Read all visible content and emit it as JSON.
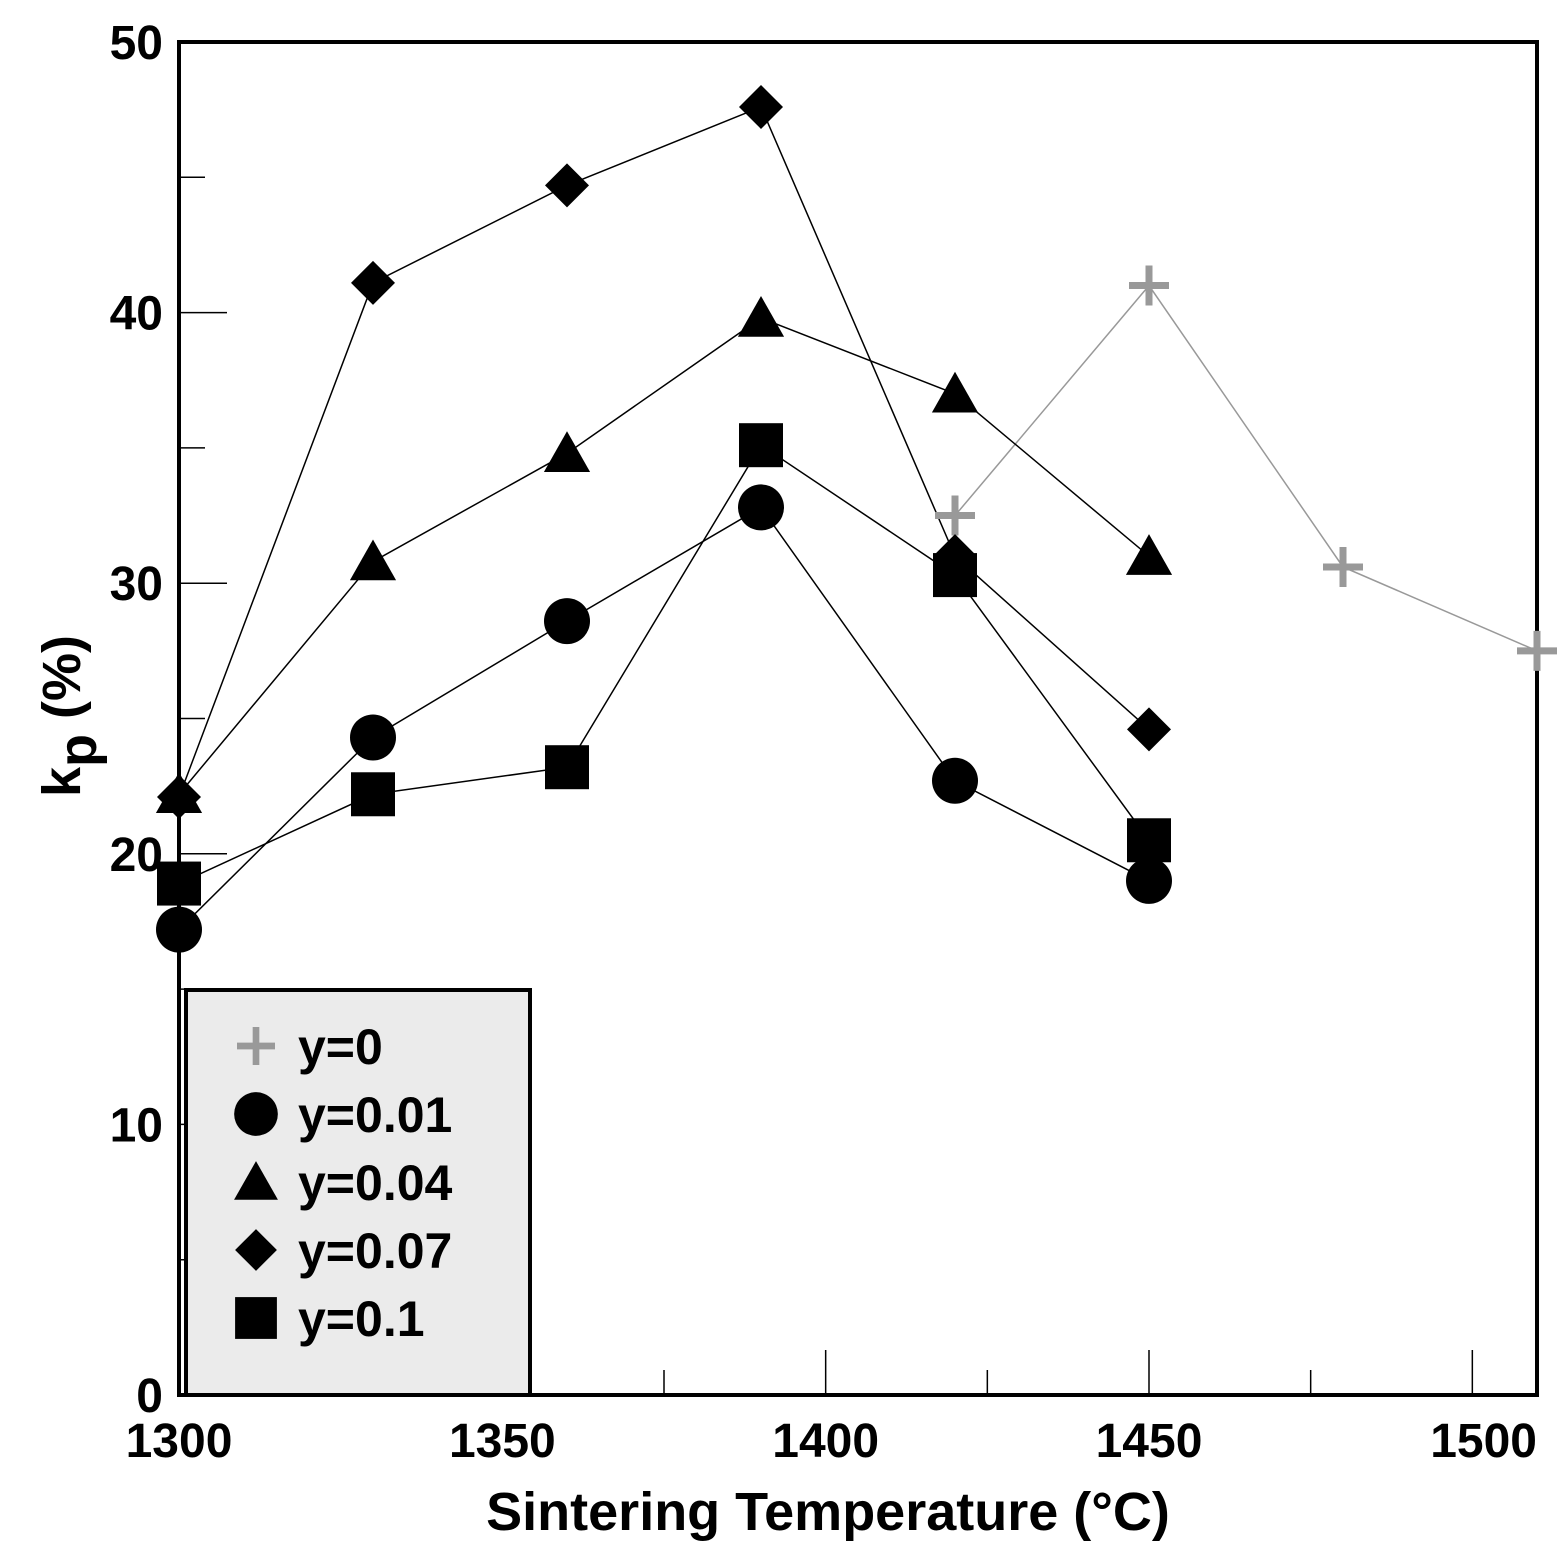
{
  "chart_data": {
    "type": "line",
    "title": "",
    "xlabel": "Sintering Temperature (°C)",
    "ylabel_main": "k",
    "ylabel_sub": "p",
    "ylabel_suffix": " (%)",
    "xlim": [
      1300,
      1510
    ],
    "ylim": [
      0,
      50
    ],
    "x_ticks": [
      1300,
      1350,
      1400,
      1450,
      1500
    ],
    "x_tick_labels": [
      "1300",
      "1350",
      "1400",
      "1450",
      "1500"
    ],
    "x_minor_ticks": [
      1325,
      1375,
      1425,
      1475
    ],
    "y_ticks": [
      0,
      10,
      20,
      30,
      40,
      50
    ],
    "y_tick_labels": [
      "0",
      "10",
      "20",
      "30",
      "40",
      "50"
    ],
    "y_minor_ticks": [
      5,
      15,
      25,
      35,
      45
    ],
    "grid": false,
    "legend_position": "bottom-left",
    "series": [
      {
        "name": "y=0",
        "marker": "plus",
        "color": "#999999",
        "x": [
          1420,
          1450,
          1480,
          1510
        ],
        "y": [
          32.5,
          41.0,
          30.6,
          27.5
        ]
      },
      {
        "name": "y=0.01",
        "marker": "circle",
        "color": "#000000",
        "x": [
          1300,
          1330,
          1360,
          1390,
          1420,
          1450
        ],
        "y": [
          17.2,
          24.3,
          28.6,
          32.8,
          22.7,
          19.0
        ]
      },
      {
        "name": "y=0.04",
        "marker": "triangle",
        "color": "#000000",
        "x": [
          1300,
          1330,
          1360,
          1390,
          1420,
          1450
        ],
        "y": [
          22.2,
          30.8,
          34.8,
          39.8,
          37.0,
          31.0
        ]
      },
      {
        "name": "y=0.07",
        "marker": "diamond",
        "color": "#000000",
        "x": [
          1300,
          1330,
          1360,
          1390,
          1420,
          1450
        ],
        "y": [
          22.1,
          41.1,
          44.7,
          47.6,
          31.0,
          24.6
        ]
      },
      {
        "name": "y=0.1",
        "marker": "square",
        "color": "#000000",
        "x": [
          1300,
          1330,
          1360,
          1390,
          1420,
          1450
        ],
        "y": [
          18.9,
          22.2,
          23.2,
          35.1,
          30.3,
          20.5
        ]
      }
    ]
  }
}
